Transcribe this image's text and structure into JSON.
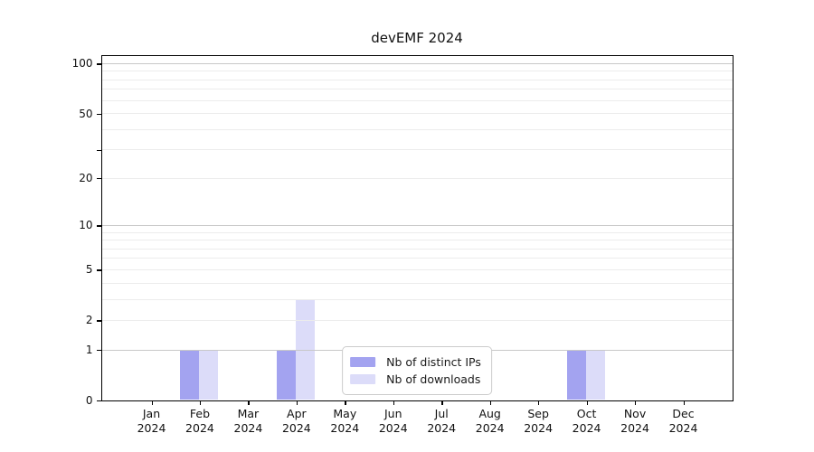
{
  "chart_data": {
    "type": "bar",
    "title": "devEMF 2024",
    "x_months": [
      "Jan",
      "Feb",
      "Mar",
      "Apr",
      "May",
      "Jun",
      "Jul",
      "Aug",
      "Sep",
      "Oct",
      "Nov",
      "Dec"
    ],
    "x_year": "2024",
    "series": [
      {
        "name": "Nb of distinct IPs",
        "color": "#a3a3f0",
        "values": [
          0,
          1,
          0,
          1,
          0,
          0,
          0,
          0,
          0,
          1,
          0,
          0
        ]
      },
      {
        "name": "Nb of downloads",
        "color": "#dcdcf9",
        "values": [
          0,
          1,
          0,
          3,
          0,
          0,
          0,
          0,
          0,
          1,
          0,
          0
        ]
      }
    ],
    "y_scale": "log1p",
    "ylim": [
      0,
      111
    ],
    "y_ticks_labeled": [
      0,
      1,
      2,
      5,
      10,
      20,
      50,
      100
    ],
    "y_ticks_unlabeled": [
      30
    ],
    "gridlines_major": [
      1,
      10,
      100
    ],
    "gridlines_minor": [
      2,
      3,
      4,
      5,
      6,
      7,
      8,
      9,
      20,
      30,
      40,
      50,
      60,
      70,
      80,
      90
    ],
    "legend_position": "lower center",
    "grid": "on",
    "xlabel": "",
    "ylabel": ""
  }
}
